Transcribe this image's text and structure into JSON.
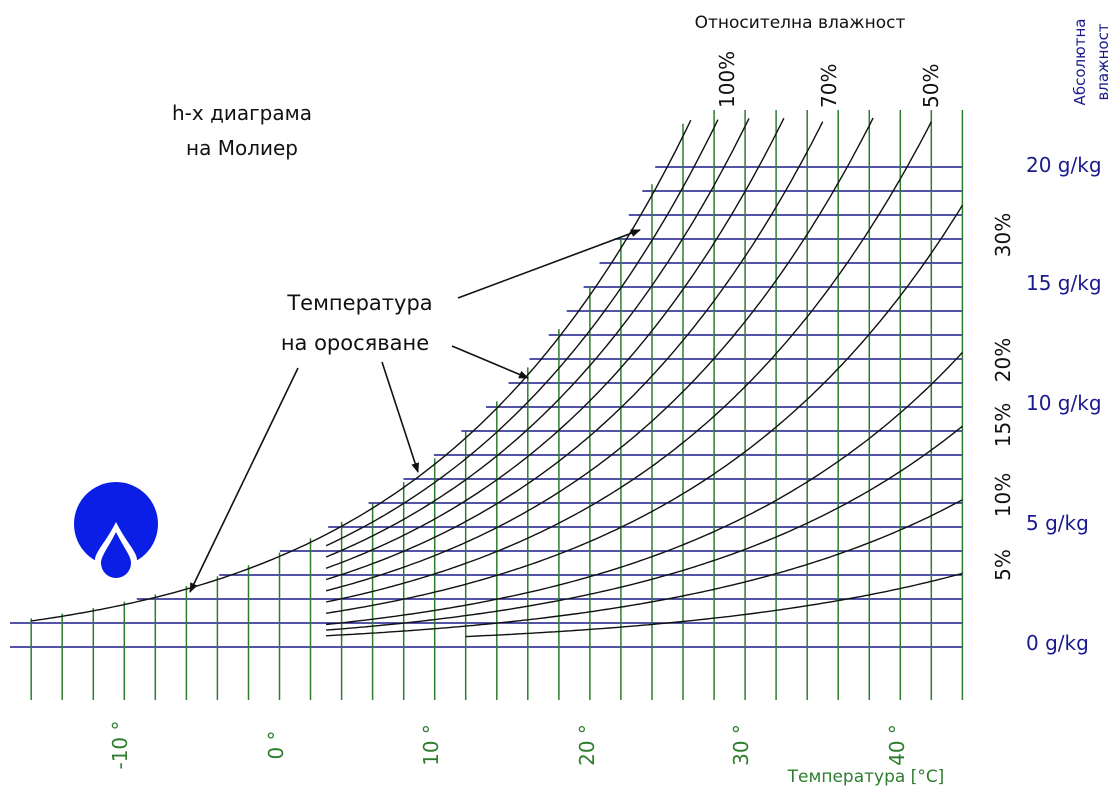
{
  "title_line1": "h-x диаграма",
  "title_line2": "на Молиер",
  "rh_header": "Относителна влажност",
  "abs_header_line1": "Абсолютна",
  "abs_header_line2": "влажност",
  "dew_label_line1": "Температура",
  "dew_label_line2": "на оросяване",
  "temp_axis_label": "Температура [°C]",
  "rh_top_labels": [
    "100%",
    "70%",
    "50%"
  ],
  "rh_side_labels": [
    "30%",
    "20%",
    "15%",
    "10%",
    "5%"
  ],
  "abs_labels": [
    "20 g/kg",
    "15 g/kg",
    "10 g/kg",
    "5 g/kg",
    "0 g/kg"
  ],
  "temp_labels": [
    "-10 °",
    "0 °",
    "10 °",
    "20 °",
    "30 °",
    "40 °"
  ],
  "colors": {
    "horizontal": "#1a1a8c",
    "vertical": "#2e7d2e",
    "curves": "#111111",
    "drop": "#0a1ee6"
  },
  "chart_data": {
    "type": "psychrometric",
    "x_axis": {
      "label": "Температура [°C]",
      "range": [
        -15,
        45
      ]
    },
    "y_axis": {
      "label": "Абсолютна влажност",
      "unit": "g/kg",
      "range": [
        0,
        22
      ]
    },
    "relative_humidity_curves": [
      "100%",
      "70%",
      "50%",
      "30%",
      "20%",
      "15%",
      "10%",
      "5%"
    ],
    "absolute_humidity_ticks": [
      "20 g/kg",
      "15 g/kg",
      "10 g/kg",
      "5 g/kg",
      "0 g/kg"
    ],
    "temperature_ticks": [
      "-10 °",
      "0 °",
      "10 °",
      "20 °",
      "30 °",
      "40 °"
    ]
  },
  "icon": "water-drop-icon"
}
